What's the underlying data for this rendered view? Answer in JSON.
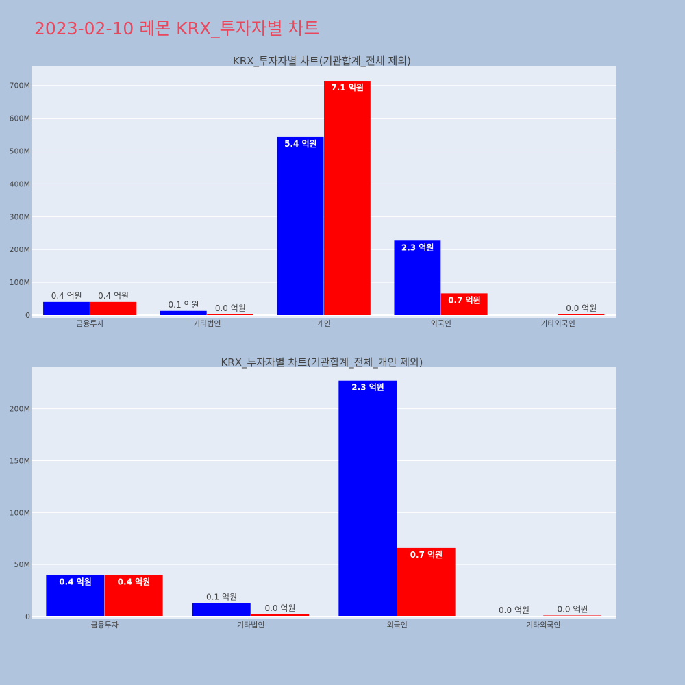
{
  "page": {
    "title": "2023-02-10 레몬 KRX_투자자별 차트"
  },
  "colors": {
    "background": "#b0c4de",
    "plot_bg": "#e5ecf6",
    "series_a": "#0000ff",
    "series_b": "#ff0000",
    "title": "#e8475c"
  },
  "chart_data": [
    {
      "type": "bar",
      "title": "KRX_투자자별 차트(기관합계_전체 제외)",
      "categories": [
        "금융투자",
        "기타법인",
        "개인",
        "외국인",
        "기타외국인"
      ],
      "ylim": [
        0,
        760000000
      ],
      "yticks": [
        0,
        100000000,
        200000000,
        300000000,
        400000000,
        500000000,
        600000000,
        700000000
      ],
      "ytick_labels": [
        "0",
        "100M",
        "200M",
        "300M",
        "400M",
        "500M",
        "600M",
        "700M"
      ],
      "grid": true,
      "series": [
        {
          "color": "#0000ff",
          "values": [
            40000000,
            13000000,
            543000000,
            227000000,
            0
          ],
          "labels": [
            "0.4 억원",
            "0.1 억원",
            "5.4 억원",
            "2.3 억원",
            ""
          ]
        },
        {
          "color": "#ff0000",
          "values": [
            40000000,
            2000000,
            714000000,
            66000000,
            1000000
          ],
          "labels": [
            "0.4 억원",
            "0.0 억원",
            "7.1 억원",
            "0.7 억원",
            "0.0 억원"
          ]
        }
      ]
    },
    {
      "type": "bar",
      "title": "KRX_투자자별 차트(기관합계_전체_개인 제외)",
      "categories": [
        "금융투자",
        "기타법인",
        "외국인",
        "기타외국인"
      ],
      "ylim": [
        0,
        240000000
      ],
      "yticks": [
        0,
        50000000,
        100000000,
        150000000,
        200000000
      ],
      "ytick_labels": [
        "0",
        "50M",
        "100M",
        "150M",
        "200M"
      ],
      "grid": true,
      "series": [
        {
          "color": "#0000ff",
          "values": [
            40000000,
            13000000,
            227000000,
            0
          ],
          "labels": [
            "0.4 억원",
            "0.1 억원",
            "2.3 억원",
            "0.0 억원"
          ]
        },
        {
          "color": "#ff0000",
          "values": [
            40000000,
            2000000,
            66000000,
            1000000
          ],
          "labels": [
            "0.4 억원",
            "0.0 억원",
            "0.7 억원",
            "0.0 억원"
          ]
        }
      ]
    }
  ]
}
